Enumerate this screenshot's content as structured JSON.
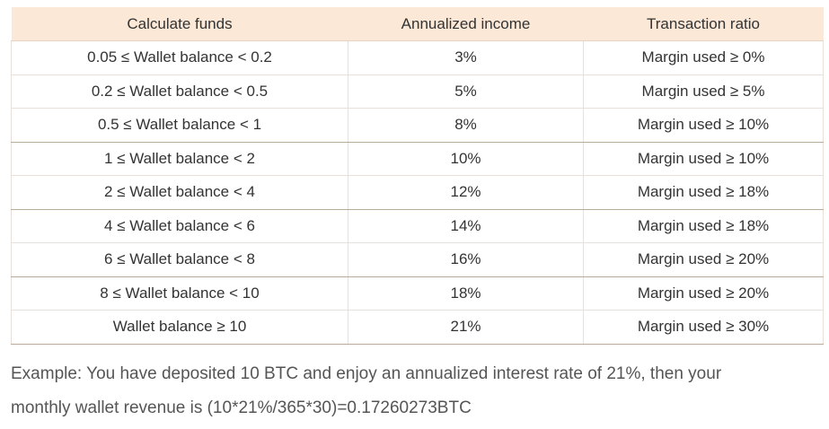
{
  "table": {
    "headers": [
      "Calculate funds",
      "Annualized income",
      "Transaction ratio"
    ],
    "rows": [
      {
        "funds": "0.05 ≤ Wallet balance < 0.2",
        "income": "3%",
        "ratio": "Margin used ≥ 0%"
      },
      {
        "funds": "0.2 ≤ Wallet balance < 0.5",
        "income": "5%",
        "ratio": "Margin used ≥ 5%"
      },
      {
        "funds": "0.5 ≤ Wallet balance < 1",
        "income": "8%",
        "ratio": "Margin used ≥ 10%"
      },
      {
        "funds": "1 ≤ Wallet balance < 2",
        "income": "10%",
        "ratio": "Margin used ≥ 10%"
      },
      {
        "funds": "2 ≤ Wallet balance < 4",
        "income": "12%",
        "ratio": "Margin used ≥ 18%"
      },
      {
        "funds": "4 ≤ Wallet balance < 6",
        "income": "14%",
        "ratio": "Margin used ≥ 18%"
      },
      {
        "funds": "6 ≤ Wallet balance < 8",
        "income": "16%",
        "ratio": "Margin used ≥ 20%"
      },
      {
        "funds": "8 ≤ Wallet balance < 10",
        "income": "18%",
        "ratio": "Margin used ≥ 20%"
      },
      {
        "funds": "Wallet balance ≥ 10",
        "income": "21%",
        "ratio": "Margin used ≥ 30%"
      }
    ]
  },
  "example": {
    "line1": "Example: You have deposited 10 BTC and enjoy an annualized interest rate of 21%, then your",
    "line2": "monthly wallet revenue is (10*21%/365*30)=0.17260273BTC"
  },
  "colors": {
    "header_background": "#fbe8d6",
    "text": "#333333"
  }
}
